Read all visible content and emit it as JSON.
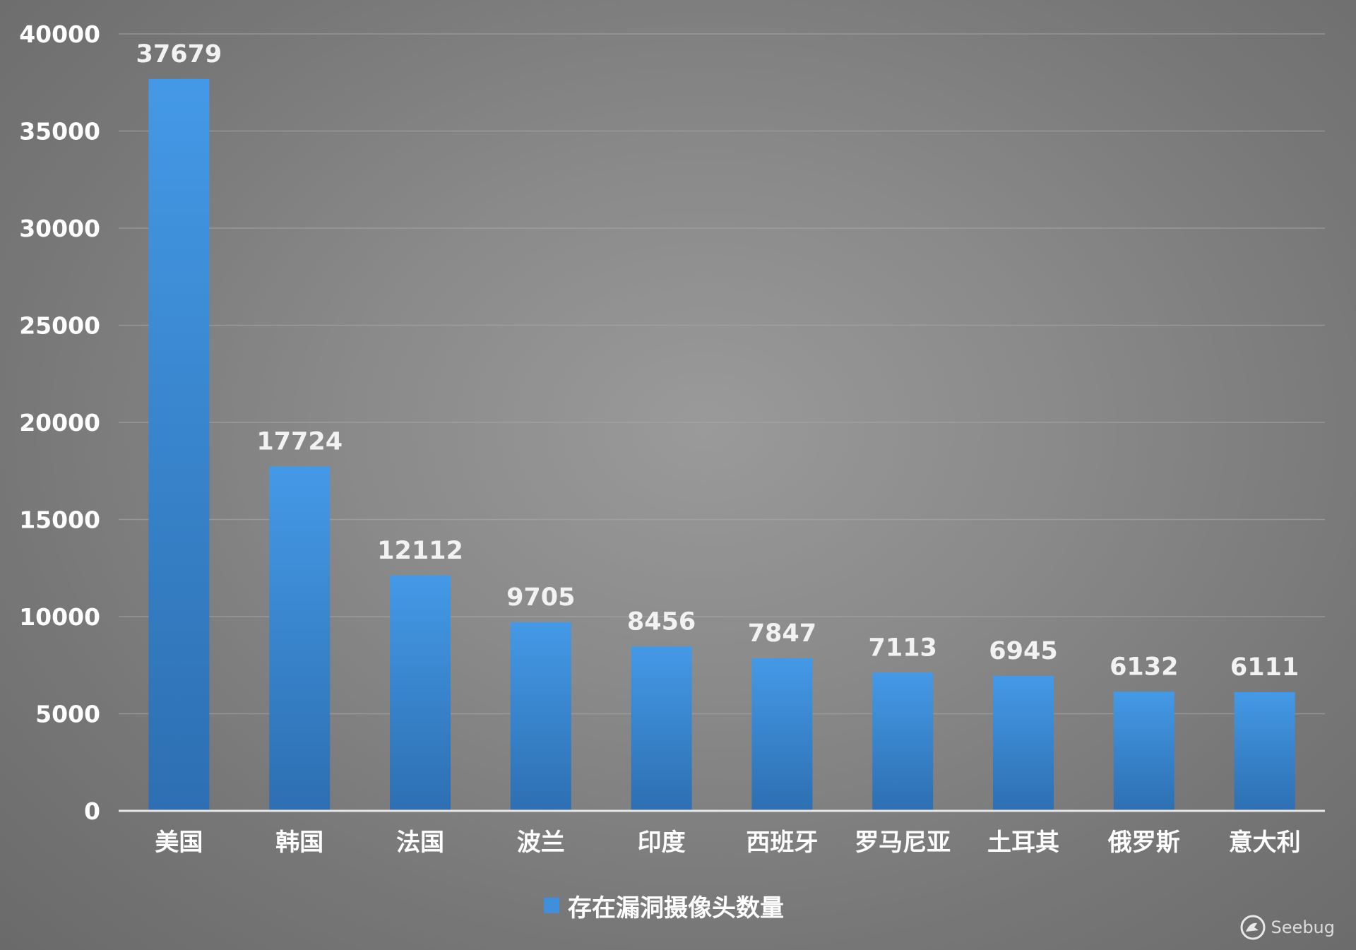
{
  "chart_data": {
    "type": "bar",
    "categories": [
      "美国",
      "韩国",
      "法国",
      "波兰",
      "印度",
      "西班牙",
      "罗马尼亚",
      "土耳其",
      "俄罗斯",
      "意大利"
    ],
    "series": [
      {
        "name": "存在漏洞摄像头数量",
        "values": [
          37679,
          17724,
          12112,
          9705,
          8456,
          7847,
          7113,
          6945,
          6132,
          6111
        ]
      }
    ],
    "data_labels": [
      "37679",
      "17724",
      "12112",
      "9705",
      "8456",
      "7847",
      "7113",
      "6945",
      "6132",
      "6111"
    ],
    "y_ticks": [
      "0",
      "5000",
      "10000",
      "15000",
      "20000",
      "25000",
      "30000",
      "35000",
      "40000"
    ],
    "ylim": [
      0,
      40000
    ],
    "grid": true,
    "legend_position": "bottom-center",
    "colors": {
      "bar_top": "#4499e6",
      "bar_bottom": "#2d6fb2",
      "gridline": "#a8a8a8",
      "axis": "#e6e6e6"
    }
  },
  "watermark": {
    "text": "Seebug",
    "icon": "seebug-logo-icon"
  }
}
